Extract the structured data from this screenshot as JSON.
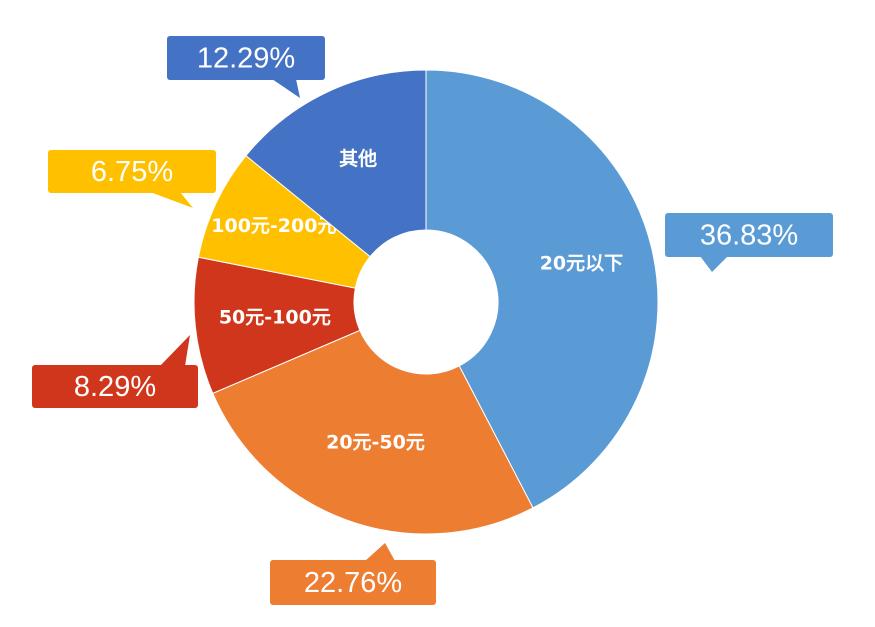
{
  "chart_data": {
    "type": "donut",
    "categories": [
      "20元以下",
      "20元-50元",
      "50元-100元",
      "100元-200元",
      "其他"
    ],
    "values": [
      36.83,
      22.76,
      8.29,
      6.75,
      12.29
    ],
    "value_labels": [
      "36.83%",
      "22.76%",
      "8.29%",
      "6.75%",
      "12.29%"
    ],
    "colors": [
      "#5b9bd5",
      "#ed7d31",
      "#d0361b",
      "#ffc000",
      "#4472c4"
    ]
  }
}
